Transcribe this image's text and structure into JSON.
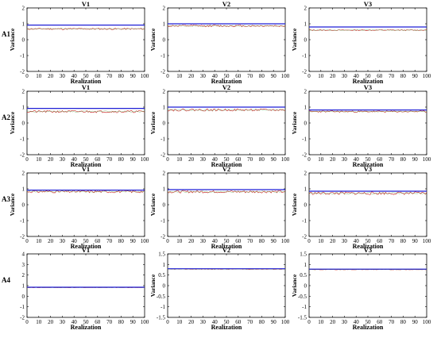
{
  "figure": {
    "rows": [
      "A1",
      "A2",
      "A3",
      "A4"
    ],
    "cols": [
      "V1",
      "V2",
      "V3"
    ]
  },
  "colors": {
    "reference": "#1f1fd6",
    "estimate": "#cc2020",
    "secondary": "#3a9e3a"
  },
  "chart_data": [
    {
      "row": "A1",
      "title": "V1",
      "type": "line",
      "xlabel": "Realization",
      "ylabel": "Variance",
      "xlim": [
        0,
        100
      ],
      "ylim": [
        -2,
        2
      ],
      "xticks": [
        "0",
        "10",
        "20",
        "30",
        "40",
        "50",
        "60",
        "70",
        "80",
        "90",
        "100"
      ],
      "yticks": [
        "-2",
        "-1",
        "0",
        "1",
        "2"
      ],
      "reference_level": 0.92,
      "estimate_mean": 0.68,
      "estimate_amp": 0.05,
      "estimate_seed": 11
    },
    {
      "row": "A1",
      "title": "V2",
      "type": "line",
      "xlabel": "Realization",
      "ylabel": "Variance",
      "xlim": [
        0,
        100
      ],
      "ylim": [
        -2,
        2
      ],
      "xticks": [
        "0",
        "10",
        "20",
        "30",
        "40",
        "50",
        "60",
        "70",
        "80",
        "90",
        "100"
      ],
      "yticks": [
        "-2",
        "-1",
        "0",
        "1",
        "2"
      ],
      "reference_level": 1.0,
      "estimate_mean": 0.87,
      "estimate_amp": 0.06,
      "estimate_seed": 12
    },
    {
      "row": "A1",
      "title": "V3",
      "type": "line",
      "xlabel": "Realization",
      "ylabel": "Variance",
      "xlim": [
        0,
        100
      ],
      "ylim": [
        -2,
        2
      ],
      "xticks": [
        "0",
        "10",
        "20",
        "30",
        "40",
        "50",
        "60",
        "70",
        "80",
        "90",
        "100"
      ],
      "yticks": [
        "-2",
        "-1",
        "0",
        "1",
        "2"
      ],
      "reference_level": 0.8,
      "estimate_mean": 0.6,
      "estimate_amp": 0.03,
      "estimate_seed": 13
    },
    {
      "row": "A2",
      "title": "V1",
      "type": "line",
      "xlabel": "Realization",
      "ylabel": "Variance",
      "xlim": [
        0,
        100
      ],
      "ylim": [
        -2,
        2
      ],
      "xticks": [
        "0",
        "10",
        "20",
        "30",
        "40",
        "50",
        "60",
        "70",
        "80",
        "90",
        "100"
      ],
      "yticks": [
        "-2",
        "-1",
        "0",
        "1",
        "2"
      ],
      "reference_level": 0.92,
      "estimate_mean": 0.72,
      "estimate_amp": 0.07,
      "estimate_seed": 21
    },
    {
      "row": "A2",
      "title": "V2",
      "type": "line",
      "xlabel": "Realization",
      "ylabel": "Variance",
      "xlim": [
        0,
        100
      ],
      "ylim": [
        -2,
        2
      ],
      "xticks": [
        "0",
        "10",
        "20",
        "30",
        "40",
        "50",
        "60",
        "70",
        "80",
        "90",
        "100"
      ],
      "yticks": [
        "-2",
        "-1",
        "0",
        "1",
        "2"
      ],
      "reference_level": 1.0,
      "estimate_mean": 0.82,
      "estimate_amp": 0.07,
      "estimate_seed": 22
    },
    {
      "row": "A2",
      "title": "V3",
      "type": "line",
      "xlabel": "Realization",
      "ylabel": "Variance",
      "xlim": [
        0,
        100
      ],
      "ylim": [
        -2,
        2
      ],
      "xticks": [
        "0",
        "10",
        "20",
        "30",
        "40",
        "50",
        "60",
        "70",
        "80",
        "90",
        "100"
      ],
      "yticks": [
        "-2",
        "-1",
        "0",
        "1",
        "2"
      ],
      "reference_level": 0.82,
      "estimate_mean": 0.72,
      "estimate_amp": 0.05,
      "estimate_seed": 23
    },
    {
      "row": "A3",
      "title": "V1",
      "type": "line",
      "xlabel": "Realization",
      "ylabel": "Variance",
      "xlim": [
        0,
        100
      ],
      "ylim": [
        -2,
        2
      ],
      "xticks": [
        "0",
        "10",
        "20",
        "30",
        "40",
        "50",
        "60",
        "70",
        "80",
        "90",
        "100"
      ],
      "yticks": [
        "-2",
        "-1",
        "0",
        "1",
        "2"
      ],
      "reference_level": 0.92,
      "estimate_mean": 0.83,
      "estimate_amp": 0.08,
      "estimate_seed": 31
    },
    {
      "row": "A3",
      "title": "V2",
      "type": "line",
      "xlabel": "Realization",
      "ylabel": "Variance",
      "xlim": [
        0,
        100
      ],
      "ylim": [
        -2,
        2
      ],
      "xticks": [
        "0",
        "10",
        "20",
        "30",
        "40",
        "50",
        "60",
        "70",
        "80",
        "90",
        "100"
      ],
      "yticks": [
        "-2",
        "-1",
        "0",
        "1",
        "2"
      ],
      "reference_level": 0.95,
      "estimate_mean": 0.82,
      "estimate_amp": 0.08,
      "estimate_seed": 32
    },
    {
      "row": "A3",
      "title": "V3",
      "type": "line",
      "xlabel": "Realization",
      "ylabel": "Variance",
      "xlim": [
        0,
        100
      ],
      "ylim": [
        -2,
        2
      ],
      "xticks": [
        "0",
        "10",
        "20",
        "30",
        "40",
        "50",
        "60",
        "70",
        "80",
        "90",
        "100"
      ],
      "yticks": [
        "-2",
        "-1",
        "0",
        "1",
        "2"
      ],
      "reference_level": 0.85,
      "estimate_mean": 0.72,
      "estimate_amp": 0.09,
      "estimate_seed": 33
    },
    {
      "row": "A4",
      "title": "V1",
      "type": "line",
      "xlabel": "Realization",
      "ylabel": "",
      "xlim": [
        0,
        100
      ],
      "ylim": [
        -2,
        4
      ],
      "xticks": [
        "0",
        "10",
        "20",
        "30",
        "40",
        "50",
        "60",
        "70",
        "80",
        "90",
        "100"
      ],
      "yticks": [
        "-2",
        "-1",
        "0",
        "1",
        "2",
        "3",
        "4"
      ],
      "reference_level": 0.85,
      "estimate_mean": 0.82,
      "estimate_amp": 0.02,
      "estimate_seed": 41
    },
    {
      "row": "A4",
      "title": "V2",
      "type": "line",
      "xlabel": "Realization",
      "ylabel": "Variance",
      "xlim": [
        0,
        100
      ],
      "ylim": [
        -1.5,
        1.5
      ],
      "xticks": [
        "0",
        "10",
        "20",
        "30",
        "40",
        "50",
        "60",
        "70",
        "80",
        "90",
        "100"
      ],
      "yticks": [
        "-1.5",
        "-1",
        "-0.5",
        "0",
        "0.5",
        "1",
        "1.5"
      ],
      "reference_level": 0.8,
      "estimate_mean": 0.78,
      "estimate_amp": 0.015,
      "estimate_seed": 42
    },
    {
      "row": "A4",
      "title": "V3",
      "type": "line",
      "xlabel": "Realization",
      "ylabel": "Variance",
      "xlim": [
        0,
        100
      ],
      "ylim": [
        -1.5,
        1.5
      ],
      "xticks": [
        "0",
        "10",
        "20",
        "30",
        "40",
        "50",
        "60",
        "70",
        "80",
        "90",
        "100"
      ],
      "yticks": [
        "-1.5",
        "-1",
        "-0.5",
        "0",
        "0.5",
        "1",
        "1.5"
      ],
      "reference_level": 0.78,
      "estimate_mean": 0.76,
      "estimate_amp": 0.012,
      "estimate_seed": 43
    }
  ]
}
